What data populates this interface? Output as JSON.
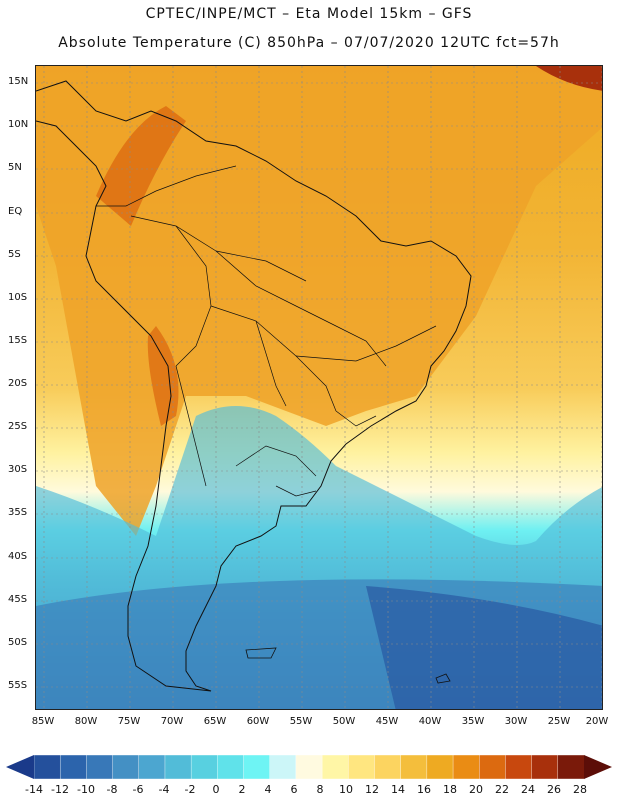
{
  "title_line1": "CPTEC/INPE/MCT –  Eta Model 15km – GFS",
  "title_line2": "Absolute Temperature (C) 850hPa – 07/07/2020 12UTC fct=57h",
  "map": {
    "lat_labels": [
      "15N",
      "10N",
      "5N",
      "EQ",
      "5S",
      "10S",
      "15S",
      "20S",
      "25S",
      "30S",
      "35S",
      "40S",
      "45S",
      "50S",
      "55S"
    ],
    "lon_labels": [
      "85W",
      "80W",
      "75W",
      "70W",
      "65W",
      "60W",
      "55W",
      "50W",
      "45W",
      "40W",
      "35W",
      "30W",
      "25W",
      "20W"
    ]
  },
  "colorbar": {
    "labels": [
      "-14",
      "-12",
      "-10",
      "-8",
      "-6",
      "-4",
      "-2",
      "0",
      "2",
      "4",
      "6",
      "8",
      "10",
      "12",
      "14",
      "16",
      "18",
      "20",
      "22",
      "24",
      "26",
      "28"
    ],
    "colors": [
      "#1a3a8a",
      "#24509c",
      "#2c64ac",
      "#3878b8",
      "#4490c4",
      "#4ca6d0",
      "#52bcd8",
      "#58d0e0",
      "#60e2ea",
      "#6ef4f4",
      "#ccf6f8",
      "#fffae0",
      "#fff6a6",
      "#ffe680",
      "#fcd460",
      "#f4be3c",
      "#eeaa22",
      "#ea8c14",
      "#dc6a10",
      "#c8480e",
      "#a8300c",
      "#7a1a0a",
      "#5c0e08"
    ]
  }
}
